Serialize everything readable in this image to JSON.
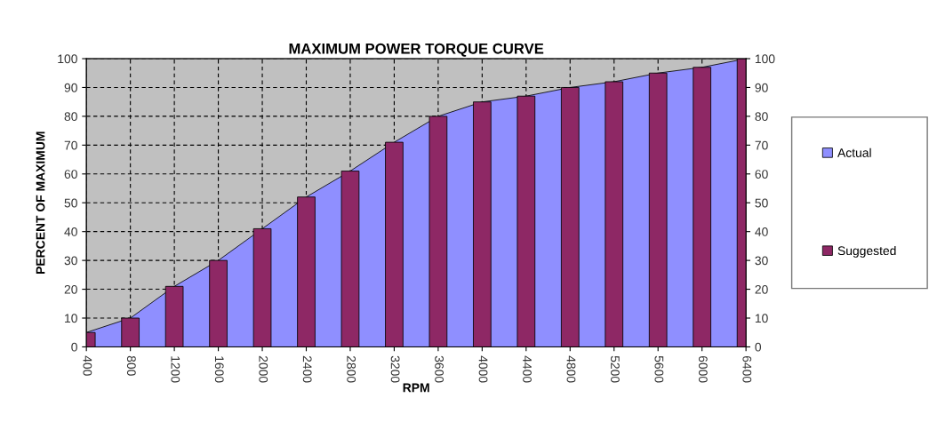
{
  "chart_data": {
    "type": "bar",
    "title": "MAXIMUM POWER TORQUE CURVE",
    "xlabel": "RPM",
    "ylabel": "PERCENT OF MAXIMUM",
    "categories": [
      "400",
      "800",
      "1200",
      "1600",
      "2000",
      "2400",
      "2800",
      "3200",
      "3600",
      "4000",
      "4400",
      "4800",
      "5200",
      "5600",
      "6000",
      "6400"
    ],
    "series": [
      {
        "name": "Actual",
        "type": "area",
        "color": "#8f8fff",
        "values": [
          5,
          10,
          21,
          30,
          41,
          52,
          61,
          71,
          80,
          85,
          87,
          90,
          92,
          95,
          97,
          100
        ]
      },
      {
        "name": "Suggested",
        "color": "#8e2865",
        "values": [
          5,
          10,
          21,
          30,
          41,
          52,
          61,
          71,
          80,
          85,
          87,
          90,
          92,
          95,
          97,
          100
        ]
      }
    ],
    "ylim": [
      0,
      100
    ],
    "yticks": [
      0,
      10,
      20,
      30,
      40,
      50,
      60,
      70,
      80,
      90,
      100
    ],
    "y2lim": [
      0,
      100
    ],
    "y2ticks": [
      0,
      10,
      20,
      30,
      40,
      50,
      60,
      70,
      80,
      90,
      100
    ],
    "grid": true,
    "legend": "right"
  }
}
